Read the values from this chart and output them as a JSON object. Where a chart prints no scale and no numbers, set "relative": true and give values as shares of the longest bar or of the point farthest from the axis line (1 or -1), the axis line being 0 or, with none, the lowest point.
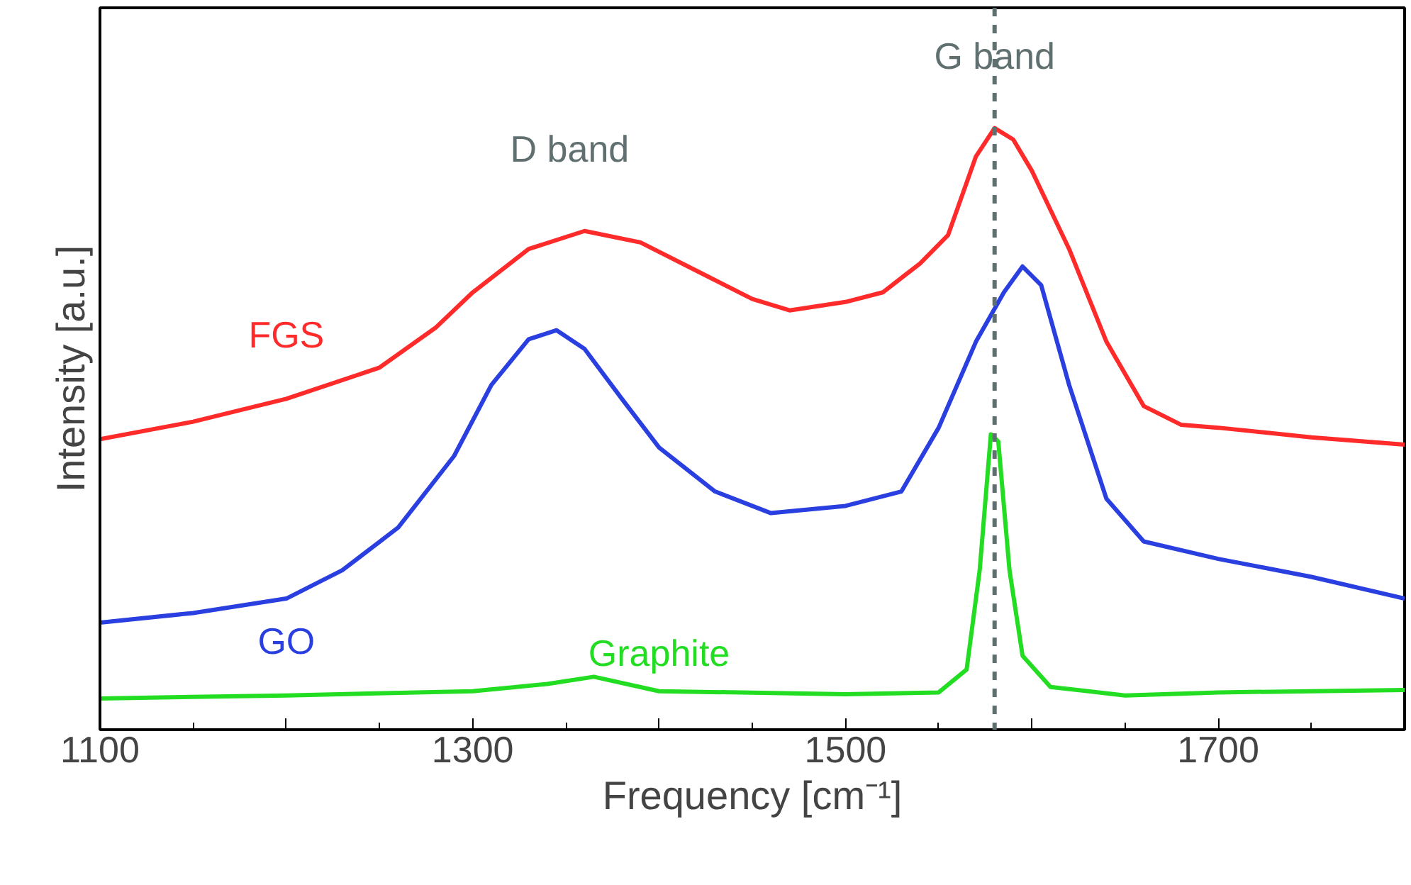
{
  "chart_data": {
    "type": "line",
    "relative": true,
    "xlabel": "Frequency [cm⁻¹]",
    "ylabel": "Intensity [a.u.]",
    "xlim": [
      1100,
      1800
    ],
    "xticks": [
      1100,
      {
        "value": 1200,
        "label": null
      },
      1300,
      {
        "value": 1400,
        "label": null
      },
      1500,
      {
        "value": 1600,
        "label": null
      },
      1700,
      {
        "value": 1800,
        "label": null
      }
    ],
    "grid": false,
    "legend": false,
    "line_style": "solid",
    "marker": "none",
    "series": [
      {
        "name": "FGS",
        "color": "#ff2a2a",
        "x": [
          1100,
          1150,
          1200,
          1250,
          1280,
          1300,
          1330,
          1360,
          1390,
          1420,
          1450,
          1470,
          1500,
          1520,
          1540,
          1555,
          1570,
          1580,
          1590,
          1600,
          1620,
          1640,
          1660,
          1680,
          1700,
          1750,
          1800
        ],
        "values": [
          0.483,
          0.512,
          0.55,
          0.602,
          0.668,
          0.727,
          0.799,
          0.829,
          0.81,
          0.763,
          0.716,
          0.697,
          0.711,
          0.727,
          0.775,
          0.822,
          0.953,
          1,
          0.981,
          0.929,
          0.799,
          0.645,
          0.538,
          0.507,
          0.502,
          0.486,
          0.474
        ]
      },
      {
        "name": "GO",
        "color": "#2a3fe0",
        "x": [
          1100,
          1150,
          1200,
          1230,
          1260,
          1290,
          1310,
          1330,
          1345,
          1360,
          1380,
          1400,
          1430,
          1460,
          1500,
          1530,
          1550,
          1570,
          1585,
          1595,
          1605,
          1620,
          1640,
          1660,
          1700,
          1750,
          1800
        ],
        "values": [
          0.178,
          0.194,
          0.218,
          0.265,
          0.336,
          0.455,
          0.573,
          0.649,
          0.664,
          0.633,
          0.55,
          0.469,
          0.396,
          0.36,
          0.372,
          0.396,
          0.502,
          0.645,
          0.727,
          0.77,
          0.739,
          0.573,
          0.384,
          0.313,
          0.284,
          0.254,
          0.218
        ]
      },
      {
        "name": "Graphite",
        "color": "#22dd22",
        "x": [
          1100,
          1200,
          1300,
          1340,
          1365,
          1400,
          1500,
          1550,
          1565,
          1572,
          1578,
          1582,
          1588,
          1595,
          1610,
          1650,
          1700,
          1800
        ],
        "values": [
          0.052,
          0.057,
          0.064,
          0.076,
          0.088,
          0.064,
          0.059,
          0.062,
          0.1,
          0.265,
          0.491,
          0.479,
          0.265,
          0.123,
          0.071,
          0.057,
          0.062,
          0.066
        ]
      }
    ],
    "ref_lines": [
      {
        "axis": "x",
        "value": 1580,
        "label": "G band",
        "color": "#607070",
        "line_style": "dashed"
      }
    ],
    "annotations": [
      "D band"
    ]
  }
}
